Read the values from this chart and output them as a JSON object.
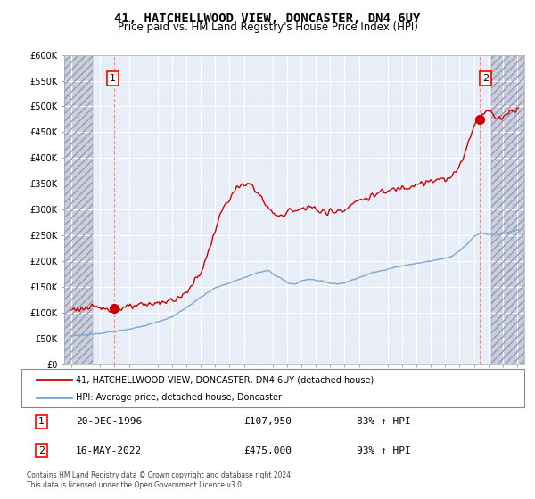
{
  "title": "41, HATCHELLWOOD VIEW, DONCASTER, DN4 6UY",
  "subtitle": "Price paid vs. HM Land Registry's House Price Index (HPI)",
  "title_fontsize": 10,
  "subtitle_fontsize": 8.5,
  "background_color": "#ffffff",
  "plot_bg_color": "#e8eef8",
  "grid_color": "#ffffff",
  "property_color": "#cc0000",
  "hpi_color": "#7aaad0",
  "hatch_bg_color": "#c8cfe0",
  "ylim": [
    0,
    600000
  ],
  "yticks": [
    0,
    50000,
    100000,
    150000,
    200000,
    250000,
    300000,
    350000,
    400000,
    450000,
    500000,
    550000,
    600000
  ],
  "ytick_labels": [
    "£0",
    "£50K",
    "£100K",
    "£150K",
    "£200K",
    "£250K",
    "£300K",
    "£350K",
    "£400K",
    "£450K",
    "£500K",
    "£550K",
    "£600K"
  ],
  "xlim_start": 1993.5,
  "xlim_end": 2025.5,
  "hatch_left_end": 1995.5,
  "hatch_right_start": 2023.2,
  "legend_property": "41, HATCHELLWOOD VIEW, DONCASTER, DN4 6UY (detached house)",
  "legend_hpi": "HPI: Average price, detached house, Doncaster",
  "point1_x": 1996.97,
  "point1_y": 107950,
  "point2_x": 2022.37,
  "point2_y": 475000,
  "point1_label": "1",
  "point2_label": "2",
  "point1_date": "20-DEC-1996",
  "point1_price": "£107,950",
  "point1_hpi": "83% ↑ HPI",
  "point2_date": "16-MAY-2022",
  "point2_price": "£475,000",
  "point2_hpi": "93% ↑ HPI",
  "copyright": "Contains HM Land Registry data © Crown copyright and database right 2024.\nThis data is licensed under the Open Government Licence v3.0.",
  "vline1_x": 1996.97,
  "vline2_x": 2022.37,
  "xtick_years": [
    1994,
    1995,
    1996,
    1997,
    1998,
    1999,
    2000,
    2001,
    2002,
    2003,
    2004,
    2005,
    2006,
    2007,
    2008,
    2009,
    2010,
    2011,
    2012,
    2013,
    2014,
    2015,
    2016,
    2017,
    2018,
    2019,
    2020,
    2021,
    2022,
    2023,
    2024,
    2025
  ]
}
